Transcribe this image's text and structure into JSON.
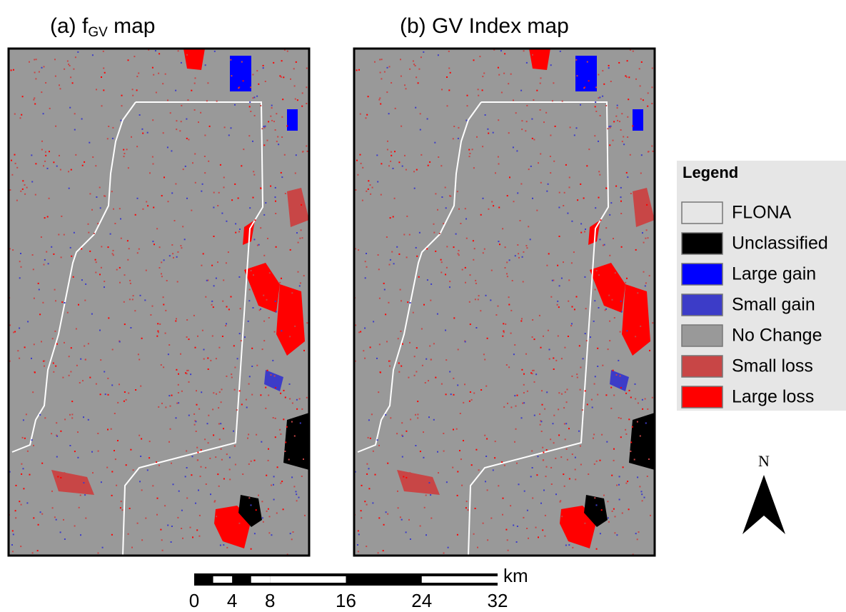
{
  "panels": [
    {
      "prefix": "(a) f",
      "subscript": "GV",
      "suffix": " map"
    },
    {
      "title": "(b) GV Index map"
    }
  ],
  "legend": {
    "title": "Legend",
    "items": [
      {
        "label": "FLONA",
        "color": "#e6e6e6"
      },
      {
        "label": "Unclassified",
        "color": "#000000"
      },
      {
        "label": "Large gain",
        "color": "#0000ff"
      },
      {
        "label": "Small gain",
        "color": "#3c3cc8"
      },
      {
        "label": "No Change",
        "color": "#999999"
      },
      {
        "label": "Small loss",
        "color": "#c84646"
      },
      {
        "label": "Large loss",
        "color": "#ff0000"
      }
    ]
  },
  "north": "N",
  "scale_bar": {
    "ticks": [
      0,
      4,
      8,
      16,
      24,
      32
    ],
    "unit": "km"
  }
}
